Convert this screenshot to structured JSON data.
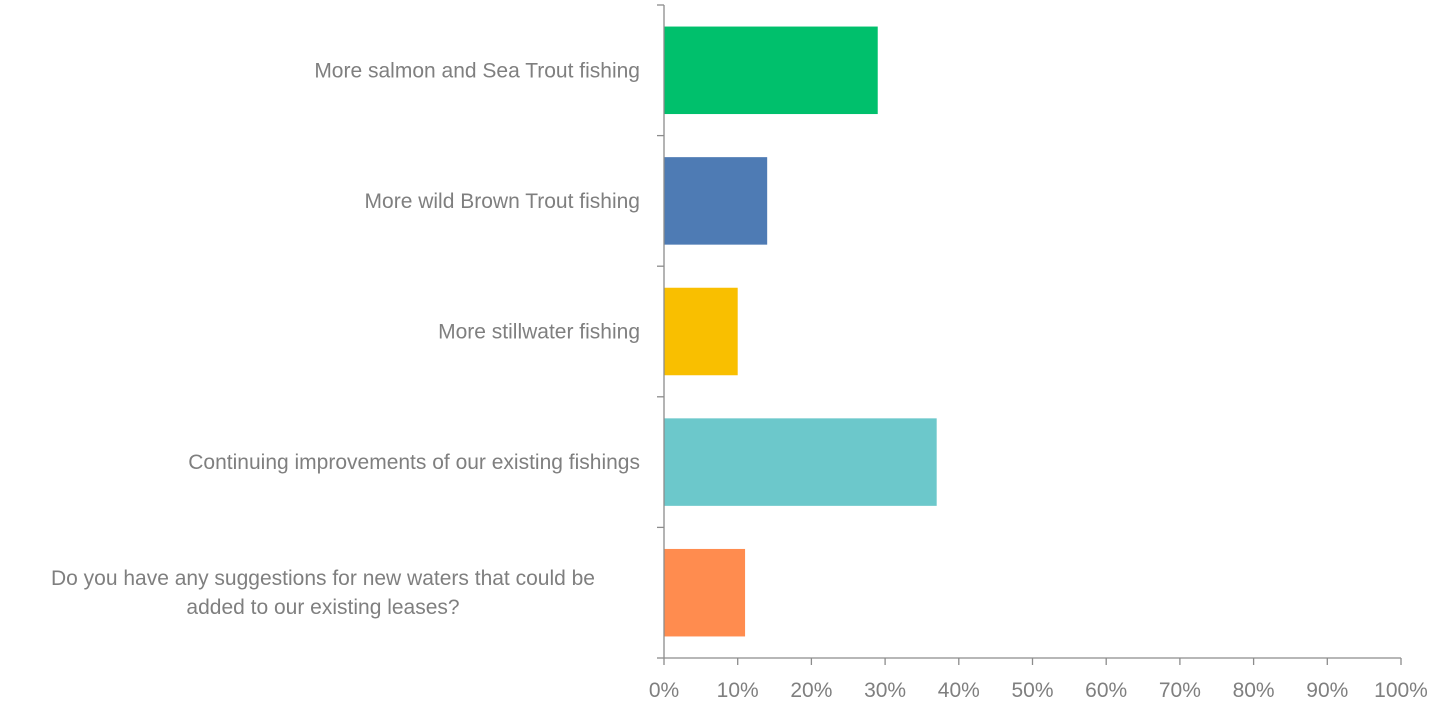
{
  "chart_data": {
    "type": "bar",
    "orientation": "horizontal",
    "title": "",
    "xlabel": "",
    "ylabel": "",
    "xlim": [
      0,
      100
    ],
    "x_ticks": [
      "0%",
      "10%",
      "20%",
      "30%",
      "40%",
      "50%",
      "60%",
      "70%",
      "80%",
      "90%",
      "100%"
    ],
    "grid": false,
    "legend": "none",
    "categories": [
      [
        "More salmon and Sea Trout fishing"
      ],
      [
        "More wild Brown Trout fishing"
      ],
      [
        "More stillwater fishing"
      ],
      [
        "Continuing improvements of our existing fishings"
      ],
      [
        "Do you have any suggestions for new waters that could be",
        "added to our existing leases?"
      ]
    ],
    "values": [
      29,
      14,
      10,
      37,
      11
    ],
    "colors": [
      "#00c06c",
      "#4e7bb4",
      "#f9bf00",
      "#6cc8cb",
      "#ff8c4f"
    ],
    "axis_color": "#8c8c8c"
  }
}
